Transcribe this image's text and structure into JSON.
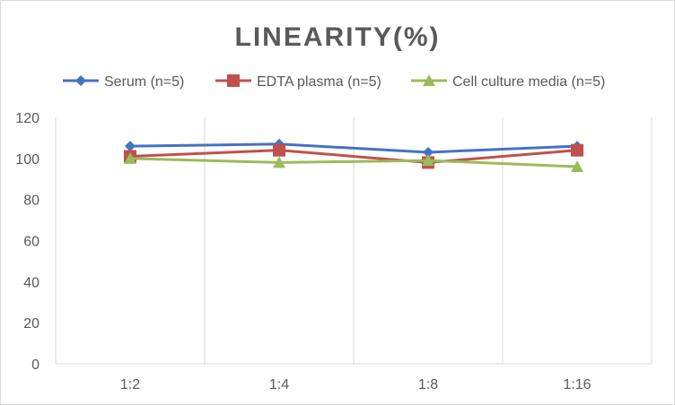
{
  "chart_data": {
    "type": "line",
    "title": "LINEARITY(%)",
    "xlabel": "",
    "ylabel": "",
    "categories": [
      "1:2",
      "1:4",
      "1:8",
      "1:16"
    ],
    "ylim": [
      0,
      120
    ],
    "yticks": [
      0,
      20,
      40,
      60,
      80,
      100,
      120
    ],
    "grid": "vertical",
    "legend": "top",
    "series": [
      {
        "name": "Serum (n=5)",
        "values": [
          106,
          107,
          103,
          106
        ],
        "color": "#4472c4",
        "marker": "diamond"
      },
      {
        "name": "EDTA plasma (n=5)",
        "values": [
          101,
          104,
          98,
          104
        ],
        "color": "#c0504d",
        "marker": "square"
      },
      {
        "name": "Cell culture media (n=5)",
        "values": [
          100,
          98,
          99,
          96
        ],
        "color": "#9bbb59",
        "marker": "triangle"
      }
    ]
  }
}
